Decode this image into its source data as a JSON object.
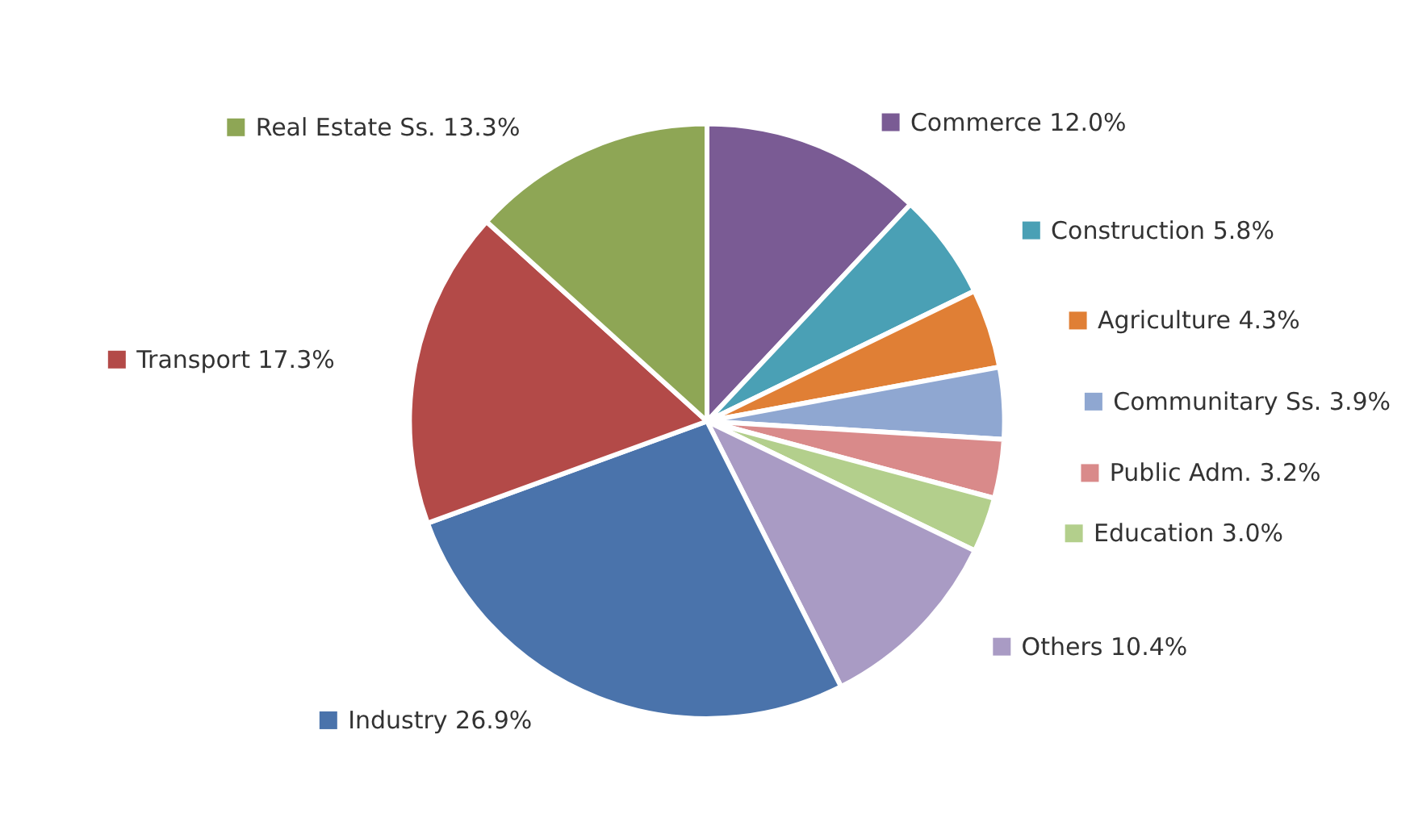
{
  "chart_data": {
    "type": "pie",
    "categories": [
      "Commerce",
      "Construction",
      "Agriculture",
      "Communitary Ss.",
      "Public Adm.",
      "Education",
      "Others",
      "Industry",
      "Transport",
      "Real Estate Ss."
    ],
    "values": [
      12.0,
      5.8,
      4.3,
      3.9,
      3.2,
      3.0,
      10.4,
      26.9,
      17.3,
      13.3
    ],
    "value_labels": [
      "12.0%",
      "5.8%",
      "4.3%",
      "3.9%",
      "3.2%",
      "3.0%",
      "10.4%",
      "26.9%",
      "17.3%",
      "13.3%"
    ],
    "colors": [
      "#7a5b94",
      "#4aa0b5",
      "#e07f35",
      "#8fa7d1",
      "#d98a8a",
      "#b3cf8c",
      "#a99bc4",
      "#4a73ab",
      "#b34a48",
      "#8ea655"
    ],
    "legend": "right"
  }
}
